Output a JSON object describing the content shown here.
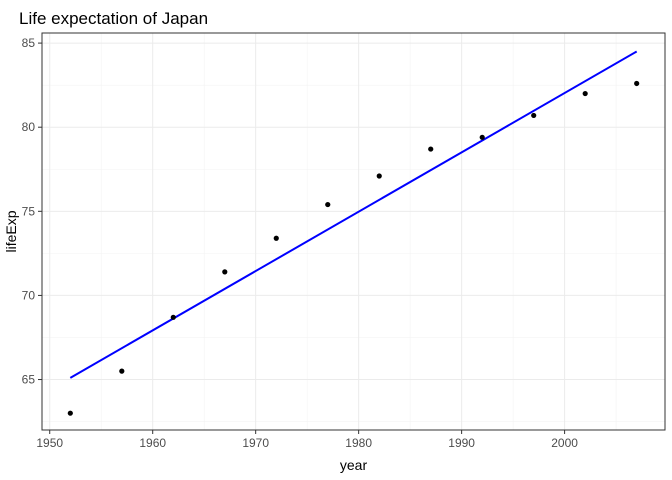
{
  "chart_data": {
    "type": "scatter",
    "title": "Life expectation of Japan",
    "xlabel": "year",
    "ylabel": "lifeExp",
    "xlim": [
      1949.25,
      2009.75
    ],
    "ylim": [
      62.0,
      85.6
    ],
    "x_ticks": [
      1950,
      1960,
      1970,
      1980,
      1990,
      2000
    ],
    "y_ticks": [
      65,
      70,
      75,
      80,
      85
    ],
    "grid": true,
    "legend": "none",
    "points": [
      {
        "x": 1952,
        "y": 63.0
      },
      {
        "x": 1957,
        "y": 65.5
      },
      {
        "x": 1962,
        "y": 68.7
      },
      {
        "x": 1967,
        "y": 71.4
      },
      {
        "x": 1972,
        "y": 73.4
      },
      {
        "x": 1977,
        "y": 75.4
      },
      {
        "x": 1982,
        "y": 77.1
      },
      {
        "x": 1987,
        "y": 78.7
      },
      {
        "x": 1992,
        "y": 79.4
      },
      {
        "x": 1997,
        "y": 80.7
      },
      {
        "x": 2002,
        "y": 82.0
      },
      {
        "x": 2007,
        "y": 82.6
      }
    ],
    "fit_line": {
      "type": "linear",
      "x": [
        1952,
        2007
      ],
      "y": [
        65.1,
        84.5
      ],
      "color": "#0000ff"
    },
    "point_color": "#000000"
  }
}
